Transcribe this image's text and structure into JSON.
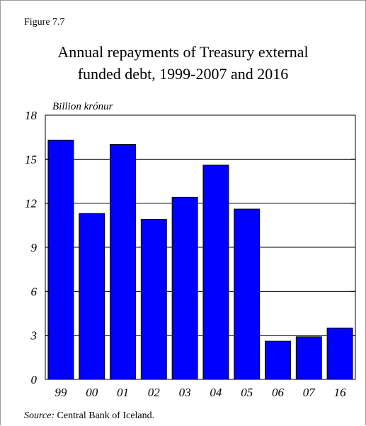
{
  "figure_label": "Figure 7.7",
  "source": {
    "key": "Source:",
    "text": " Central Bank of Iceland."
  },
  "colors": {
    "bar": "#0000ff",
    "bar_outline": "#000000",
    "grid": "#000000"
  },
  "chart_data": {
    "type": "bar",
    "title": "Annual repayments of Treasury external funded debt, 1999-2007 and 2016",
    "title_lines": [
      "Annual repayments of Treasury external",
      "funded debt, 1999-2007 and 2016"
    ],
    "ylabel": "Billion krónur",
    "xlabel": "",
    "categories": [
      "99",
      "00",
      "01",
      "02",
      "03",
      "04",
      "05",
      "06",
      "07",
      "16"
    ],
    "values": [
      16.3,
      11.3,
      16.0,
      10.9,
      12.4,
      14.6,
      11.6,
      2.6,
      2.9,
      3.5
    ],
    "ylim": [
      0,
      18
    ],
    "yticks": [
      0,
      3,
      6,
      9,
      12,
      15,
      18
    ],
    "grid": true,
    "legend": "none"
  }
}
